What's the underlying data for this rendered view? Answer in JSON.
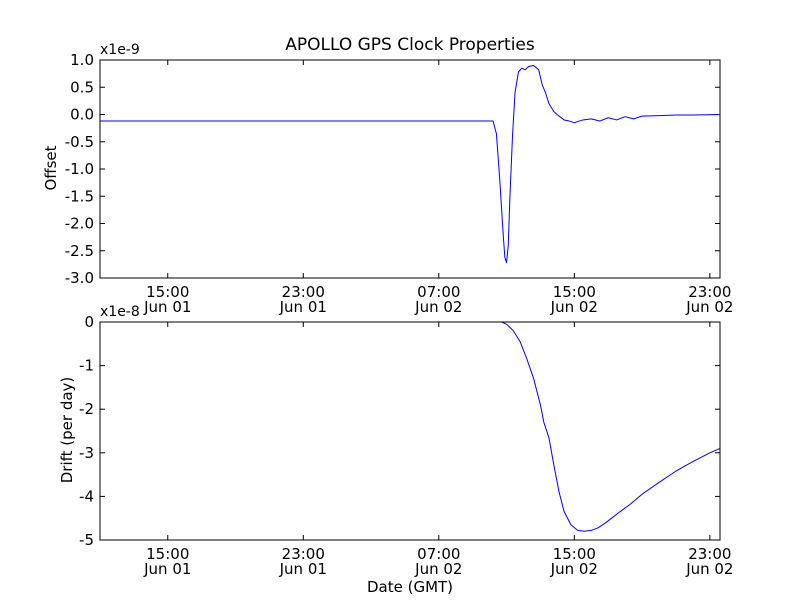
{
  "title": "APOLLO GPS Clock Properties",
  "chart_data": [
    {
      "type": "line",
      "title": "APOLLO GPS Clock Properties",
      "xlabel": "",
      "ylabel": "Offset",
      "y_multiplier_label": "x1e-9",
      "ylim": [
        -3.0,
        1.0
      ],
      "xlim_hours": [
        11.0,
        47.6
      ],
      "y_ticks": [
        {
          "value": 1.0,
          "label": "1.0"
        },
        {
          "value": 0.5,
          "label": "0.5"
        },
        {
          "value": 0.0,
          "label": "0.0"
        },
        {
          "value": -0.5,
          "label": "-0.5"
        },
        {
          "value": -1.0,
          "label": "-1.0"
        },
        {
          "value": -1.5,
          "label": "-1.5"
        },
        {
          "value": -2.0,
          "label": "-2.0"
        },
        {
          "value": -2.5,
          "label": "-2.5"
        },
        {
          "value": -3.0,
          "label": "-3.0"
        }
      ],
      "x_ticks": [
        {
          "hours": 15,
          "time": "15:00",
          "date": "Jun 01"
        },
        {
          "hours": 23,
          "time": "23:00",
          "date": "Jun 01"
        },
        {
          "hours": 31,
          "time": "07:00",
          "date": "Jun 02"
        },
        {
          "hours": 39,
          "time": "15:00",
          "date": "Jun 02"
        },
        {
          "hours": 47,
          "time": "23:00",
          "date": "Jun 02"
        }
      ],
      "series": [
        {
          "color": "#0000ff",
          "x": [
            11.0,
            20.0,
            30.0,
            34.2,
            34.4,
            34.6,
            34.8,
            34.9,
            35.0,
            35.1,
            35.2,
            35.35,
            35.5,
            35.7,
            35.9,
            36.1,
            36.3,
            36.6,
            36.9,
            37.1,
            37.3,
            37.5,
            37.8,
            38.1,
            38.4,
            38.7,
            39.0,
            39.5,
            40.0,
            40.5,
            41.0,
            41.5,
            42.0,
            42.5,
            43.0,
            44.0,
            45.0,
            46.0,
            47.6
          ],
          "y": [
            -0.12,
            -0.12,
            -0.12,
            -0.12,
            -0.35,
            -1.2,
            -2.2,
            -2.62,
            -2.72,
            -2.4,
            -1.5,
            -0.4,
            0.4,
            0.78,
            0.85,
            0.82,
            0.88,
            0.9,
            0.82,
            0.55,
            0.4,
            0.2,
            0.05,
            -0.03,
            -0.1,
            -0.12,
            -0.15,
            -0.1,
            -0.08,
            -0.12,
            -0.06,
            -0.1,
            -0.04,
            -0.08,
            -0.03,
            -0.02,
            -0.01,
            -0.01,
            0.0
          ]
        }
      ]
    },
    {
      "type": "line",
      "title": "",
      "xlabel": "Date (GMT)",
      "ylabel": "Drift (per day)",
      "y_multiplier_label": "x1e-8",
      "ylim": [
        -5,
        0
      ],
      "xlim_hours": [
        11.0,
        47.6
      ],
      "y_ticks": [
        {
          "value": 0,
          "label": "0"
        },
        {
          "value": -1,
          "label": "-1"
        },
        {
          "value": -2,
          "label": "-2"
        },
        {
          "value": -3,
          "label": "-3"
        },
        {
          "value": -4,
          "label": "-4"
        },
        {
          "value": -5,
          "label": "-5"
        }
      ],
      "x_ticks": [
        {
          "hours": 15,
          "time": "15:00",
          "date": "Jun 01"
        },
        {
          "hours": 23,
          "time": "23:00",
          "date": "Jun 01"
        },
        {
          "hours": 31,
          "time": "07:00",
          "date": "Jun 02"
        },
        {
          "hours": 39,
          "time": "15:00",
          "date": "Jun 02"
        },
        {
          "hours": 47,
          "time": "23:00",
          "date": "Jun 02"
        }
      ],
      "series": [
        {
          "color": "#0000ff",
          "x": [
            11.0,
            20.0,
            30.0,
            34.7,
            35.0,
            35.4,
            35.8,
            36.2,
            36.6,
            37.0,
            37.2,
            37.5,
            37.8,
            38.1,
            38.4,
            38.8,
            39.2,
            39.6,
            40.0,
            40.4,
            40.8,
            41.2,
            41.7,
            42.3,
            43.0,
            44.0,
            45.0,
            46.0,
            47.0,
            47.6
          ],
          "y": [
            0.0,
            0.0,
            0.0,
            0.0,
            -0.05,
            -0.2,
            -0.45,
            -0.85,
            -1.3,
            -1.9,
            -2.3,
            -2.65,
            -3.3,
            -3.9,
            -4.35,
            -4.65,
            -4.78,
            -4.8,
            -4.78,
            -4.72,
            -4.62,
            -4.5,
            -4.35,
            -4.18,
            -3.95,
            -3.68,
            -3.42,
            -3.2,
            -3.0,
            -2.9
          ]
        }
      ]
    }
  ]
}
